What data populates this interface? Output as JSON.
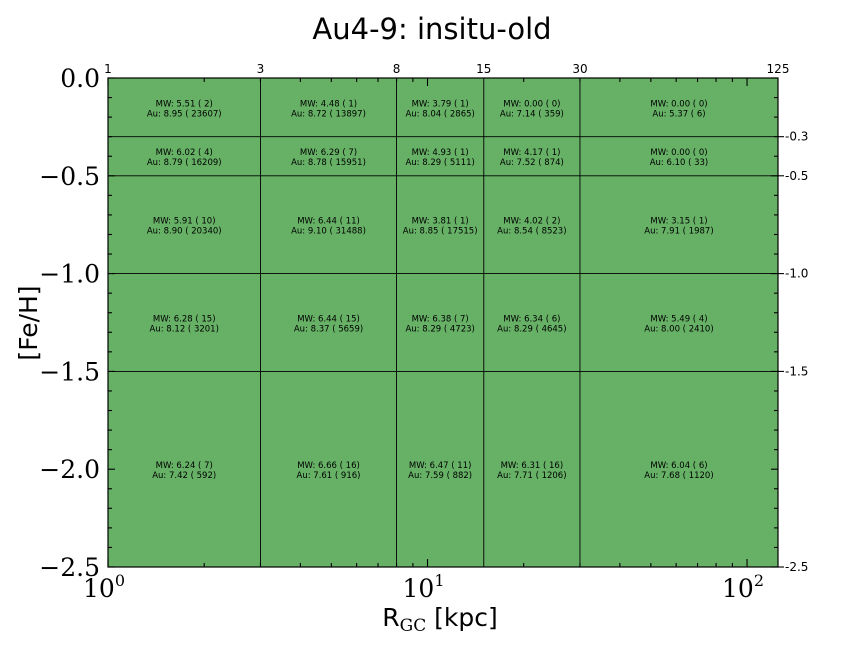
{
  "chart_data": {
    "type": "heatmap",
    "title": "Au4-9: insitu-old",
    "xlabel_main": "R",
    "xlabel_sub": "GC",
    "xlabel_unit": " [kpc]",
    "ylabel": "[Fe/H]",
    "x_scale": "log",
    "xlim": [
      1,
      125
    ],
    "ylim": [
      -2.5,
      0.0
    ],
    "x_bin_edges": [
      1,
      3,
      8,
      15,
      30,
      125
    ],
    "y_bin_edges": [
      0.0,
      -0.3,
      -0.5,
      -1.0,
      -1.5,
      -2.5
    ],
    "top_tick_labels": [
      "1",
      "3",
      "8",
      "15",
      "30",
      "125"
    ],
    "right_tick_labels": [
      "-0.3",
      "-0.5",
      "-1.0",
      "-1.5",
      "-2.5"
    ],
    "bottom_tick_labels": [
      {
        "value": 1,
        "base": "10",
        "exp": "0"
      },
      {
        "value": 10,
        "base": "10",
        "exp": "1"
      },
      {
        "value": 100,
        "base": "10",
        "exp": "2"
      }
    ],
    "left_tick_labels": [
      {
        "value": 0.0,
        "text": "0.0"
      },
      {
        "value": -0.5,
        "text": "−0.5"
      },
      {
        "value": -1.0,
        "text": "−1.0"
      },
      {
        "value": -1.5,
        "text": "−1.5"
      },
      {
        "value": -2.0,
        "text": "−2.0"
      },
      {
        "value": -2.5,
        "text": "−2.5"
      }
    ],
    "cell_color": "#66b166",
    "cells": [
      [
        {
          "mw": "MW: 5.51 ( 2)",
          "au": "Au: 8.95 ( 23607)"
        },
        {
          "mw": "MW: 4.48 ( 1)",
          "au": "Au: 8.72 ( 13897)"
        },
        {
          "mw": "MW: 3.79 ( 1)",
          "au": "Au: 8.04 ( 2865)"
        },
        {
          "mw": "MW: 0.00 ( 0)",
          "au": "Au: 7.14 ( 359)"
        },
        {
          "mw": "MW: 0.00 ( 0)",
          "au": "Au: 5.37 ( 6)"
        }
      ],
      [
        {
          "mw": "MW: 6.02 ( 4)",
          "au": "Au: 8.79 ( 16209)"
        },
        {
          "mw": "MW: 6.29 ( 7)",
          "au": "Au: 8.78 ( 15951)"
        },
        {
          "mw": "MW: 4.93 ( 1)",
          "au": "Au: 8.29 ( 5111)"
        },
        {
          "mw": "MW: 4.17 ( 1)",
          "au": "Au: 7.52 ( 874)"
        },
        {
          "mw": "MW: 0.00 ( 0)",
          "au": "Au: 6.10 ( 33)"
        }
      ],
      [
        {
          "mw": "MW: 5.91 ( 10)",
          "au": "Au: 8.90 ( 20340)"
        },
        {
          "mw": "MW: 6.44 ( 11)",
          "au": "Au: 9.10 ( 31488)"
        },
        {
          "mw": "MW: 3.81 ( 1)",
          "au": "Au: 8.85 ( 17515)"
        },
        {
          "mw": "MW: 4.02 ( 2)",
          "au": "Au: 8.54 ( 8523)"
        },
        {
          "mw": "MW: 3.15 ( 1)",
          "au": "Au: 7.91 ( 1987)"
        }
      ],
      [
        {
          "mw": "MW: 6.28 ( 15)",
          "au": "Au: 8.12 ( 3201)"
        },
        {
          "mw": "MW: 6.44 ( 15)",
          "au": "Au: 8.37 ( 5659)"
        },
        {
          "mw": "MW: 6.38 ( 7)",
          "au": "Au: 8.29 ( 4723)"
        },
        {
          "mw": "MW: 6.34 ( 6)",
          "au": "Au: 8.29 ( 4645)"
        },
        {
          "mw": "MW: 5.49 ( 4)",
          "au": "Au: 8.00 ( 2410)"
        }
      ],
      [
        {
          "mw": "MW: 6.24 ( 7)",
          "au": "Au: 7.42 ( 592)"
        },
        {
          "mw": "MW: 6.66 ( 16)",
          "au": "Au: 7.61 ( 916)"
        },
        {
          "mw": "MW: 6.47 ( 11)",
          "au": "Au: 7.59 ( 882)"
        },
        {
          "mw": "MW: 6.31 ( 16)",
          "au": "Au: 7.71 ( 1206)"
        },
        {
          "mw": "MW: 6.04 ( 6)",
          "au": "Au: 7.68 ( 1120)"
        }
      ]
    ]
  }
}
